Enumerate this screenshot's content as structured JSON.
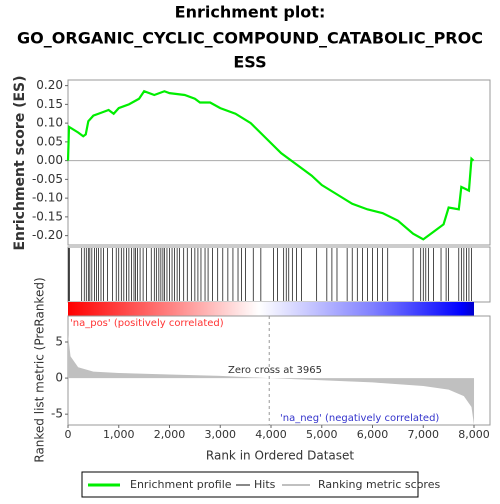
{
  "chart_data": {
    "type": "gsea",
    "title": [
      "Enrichment plot:",
      "GO_ORGANIC_CYCLIC_COMPOUND_CATABOLIC_PROC",
      "ESS"
    ],
    "es_axis_label": "Enrichment score (ES)",
    "metric_axis_label": "Ranked list metric (PreRanked)",
    "x_axis_label": "Rank in Ordered Dataset",
    "xlim": [
      0,
      8315
    ],
    "xticks": [
      0,
      {
        "value": 1000,
        "label": "1,000"
      },
      {
        "value": 2000,
        "label": "2,000"
      },
      {
        "value": 3000,
        "label": "3,000"
      },
      {
        "value": 4000,
        "label": "4,000"
      },
      {
        "value": 5000,
        "label": "5,000"
      },
      {
        "value": 6000,
        "label": "6,000"
      },
      {
        "value": 7000,
        "label": "7,000"
      },
      {
        "value": 8000,
        "label": "8,000"
      }
    ],
    "ylim": [
      -0.225,
      0.215
    ],
    "yticks": [
      {
        "value": 0.2,
        "label": "0.20"
      },
      {
        "value": 0.15,
        "label": "0.15"
      },
      {
        "value": 0.1,
        "label": "0.10"
      },
      {
        "value": 0.05,
        "label": "0.05"
      },
      {
        "value": 0,
        "label": "0.00"
      },
      {
        "value": -0.05,
        "label": "-0.05"
      },
      {
        "value": -0.1,
        "label": "-0.10"
      },
      {
        "value": -0.15,
        "label": "-0.15"
      },
      {
        "value": -0.2,
        "label": "-0.20"
      }
    ],
    "metric_ylim": [
      -6.5,
      8.6
    ],
    "metric_yticks": [
      5,
      0,
      -5
    ],
    "enrichment": {
      "name": "Enrichment profile",
      "color": "#00ee00",
      "x": [
        0,
        20,
        200,
        300,
        350,
        400,
        500,
        600,
        700,
        800,
        900,
        1000,
        1200,
        1400,
        1500,
        1700,
        1900,
        2000,
        2300,
        2500,
        2600,
        2800,
        3000,
        3300,
        3600,
        3900,
        4200,
        4500,
        4800,
        5000,
        5300,
        5600,
        5900,
        6200,
        6500,
        6800,
        7000,
        7200,
        7400,
        7500,
        7700,
        7750,
        7900,
        7950,
        7990
      ],
      "values": [
        0,
        0.09,
        0.075,
        0.065,
        0.07,
        0.105,
        0.12,
        0.125,
        0.13,
        0.135,
        0.125,
        0.14,
        0.15,
        0.165,
        0.185,
        0.175,
        0.185,
        0.18,
        0.175,
        0.165,
        0.155,
        0.155,
        0.14,
        0.125,
        0.1,
        0.06,
        0.02,
        -0.01,
        -0.04,
        -0.065,
        -0.09,
        -0.115,
        -0.13,
        -0.14,
        -0.16,
        -0.195,
        -0.21,
        -0.19,
        -0.17,
        -0.125,
        -0.13,
        -0.07,
        -0.08,
        0.005,
        0
      ]
    },
    "hits": {
      "name": "Hits",
      "color": "#000000",
      "x": [
        10,
        30,
        270,
        320,
        360,
        400,
        430,
        470,
        520,
        560,
        600,
        650,
        700,
        780,
        880,
        950,
        1000,
        1050,
        1100,
        1150,
        1200,
        1250,
        1300,
        1330,
        1370,
        1420,
        1480,
        1550,
        1640,
        1700,
        1740,
        1790,
        1830,
        1870,
        1900,
        1950,
        2000,
        2050,
        2100,
        2150,
        2200,
        2280,
        2350,
        2430,
        2500,
        2560,
        2620,
        2700,
        2760,
        2850,
        2950,
        3050,
        3150,
        3250,
        3350,
        3420,
        3500,
        3650,
        3800,
        4050,
        4130,
        4250,
        4300,
        4350,
        4420,
        4500,
        4600,
        4900,
        5100,
        5200,
        5300,
        5500,
        5600,
        5700,
        5800,
        5900,
        6000,
        6100,
        6200,
        6300,
        6800,
        6950,
        7000,
        7050,
        7100,
        7200,
        7350,
        7450,
        7500,
        7700,
        7750,
        7800,
        7850,
        7900,
        7950
      ]
    },
    "metric": {
      "name": "Ranking metric scores",
      "color": "#c0c0c0",
      "x": [
        0,
        50,
        200,
        500,
        1000,
        2000,
        3000,
        3965,
        5000,
        6000,
        7000,
        7500,
        7800,
        7950,
        8000
      ],
      "values": [
        6,
        3,
        1.5,
        0.9,
        0.7,
        0.5,
        0.3,
        0,
        -0.3,
        -0.6,
        -1.1,
        -1.6,
        -2.5,
        -4,
        -6.5
      ]
    },
    "zero_cross": 3965,
    "annotations": {
      "pos": "'na_pos' (positively correlated)",
      "zero": "Zero cross at 3965",
      "neg": "'na_neg' (negatively correlated)"
    }
  }
}
